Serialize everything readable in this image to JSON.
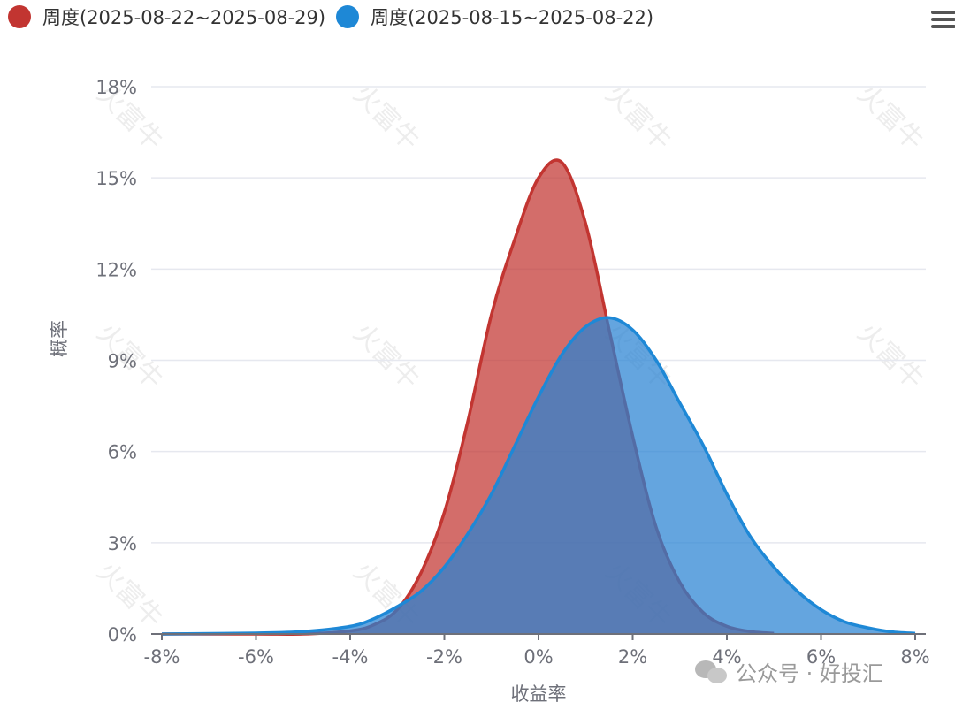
{
  "toolbar": {
    "menu_icon": "hamburger-menu-icon"
  },
  "watermark": {
    "text": "火富牛",
    "credit": "公众号 · 好投汇",
    "credit_icon": "wechat-icon"
  },
  "chart_data": {
    "type": "area",
    "xlabel": "收益率",
    "ylabel": "概率",
    "xlim": [
      -8,
      8
    ],
    "ylim": [
      0,
      18
    ],
    "x_ticks": [
      -8,
      -6,
      -4,
      -2,
      0,
      2,
      4,
      6,
      8
    ],
    "x_tick_labels": [
      "-8%",
      "-6%",
      "-4%",
      "-2%",
      "0%",
      "2%",
      "4%",
      "6%",
      "8%"
    ],
    "y_ticks": [
      0,
      3,
      6,
      9,
      12,
      15,
      18
    ],
    "y_tick_labels": [
      "0%",
      "3%",
      "6%",
      "9%",
      "12%",
      "15%",
      "18%"
    ],
    "grid": true,
    "legend_position": "top-left",
    "series": [
      {
        "name": "周度(2025-08-22~2025-08-29)",
        "color": "#c23531",
        "fill": "rgba(194,53,49,0.72)",
        "x": [
          -8,
          -6,
          -5,
          -4,
          -3.5,
          -3,
          -2.5,
          -2,
          -1.5,
          -1,
          -0.5,
          0,
          0.5,
          1,
          1.5,
          2,
          2.5,
          3,
          3.5,
          4,
          4.5,
          5
        ],
        "y": [
          0,
          0,
          0,
          0.1,
          0.3,
          0.8,
          2.0,
          4.0,
          7.0,
          10.5,
          13.0,
          15.0,
          15.5,
          13.5,
          10.0,
          6.5,
          3.5,
          1.7,
          0.7,
          0.25,
          0.08,
          0.02
        ]
      },
      {
        "name": "周度(2025-08-15~2025-08-22)",
        "color": "#1e88d6",
        "fill": "rgba(40,130,210,0.72)",
        "x": [
          -8,
          -6,
          -5,
          -4,
          -3.5,
          -3,
          -2.5,
          -2,
          -1.5,
          -1,
          -0.5,
          0,
          0.5,
          1,
          1.5,
          2,
          2.5,
          3,
          3.5,
          4,
          4.5,
          5,
          5.5,
          6,
          6.5,
          7,
          7.5,
          8
        ],
        "y": [
          0,
          0.03,
          0.08,
          0.25,
          0.5,
          0.9,
          1.4,
          2.2,
          3.3,
          4.6,
          6.2,
          7.8,
          9.2,
          10.1,
          10.4,
          10.0,
          9.0,
          7.6,
          6.2,
          4.6,
          3.2,
          2.2,
          1.4,
          0.8,
          0.4,
          0.2,
          0.07,
          0.02
        ]
      }
    ]
  }
}
